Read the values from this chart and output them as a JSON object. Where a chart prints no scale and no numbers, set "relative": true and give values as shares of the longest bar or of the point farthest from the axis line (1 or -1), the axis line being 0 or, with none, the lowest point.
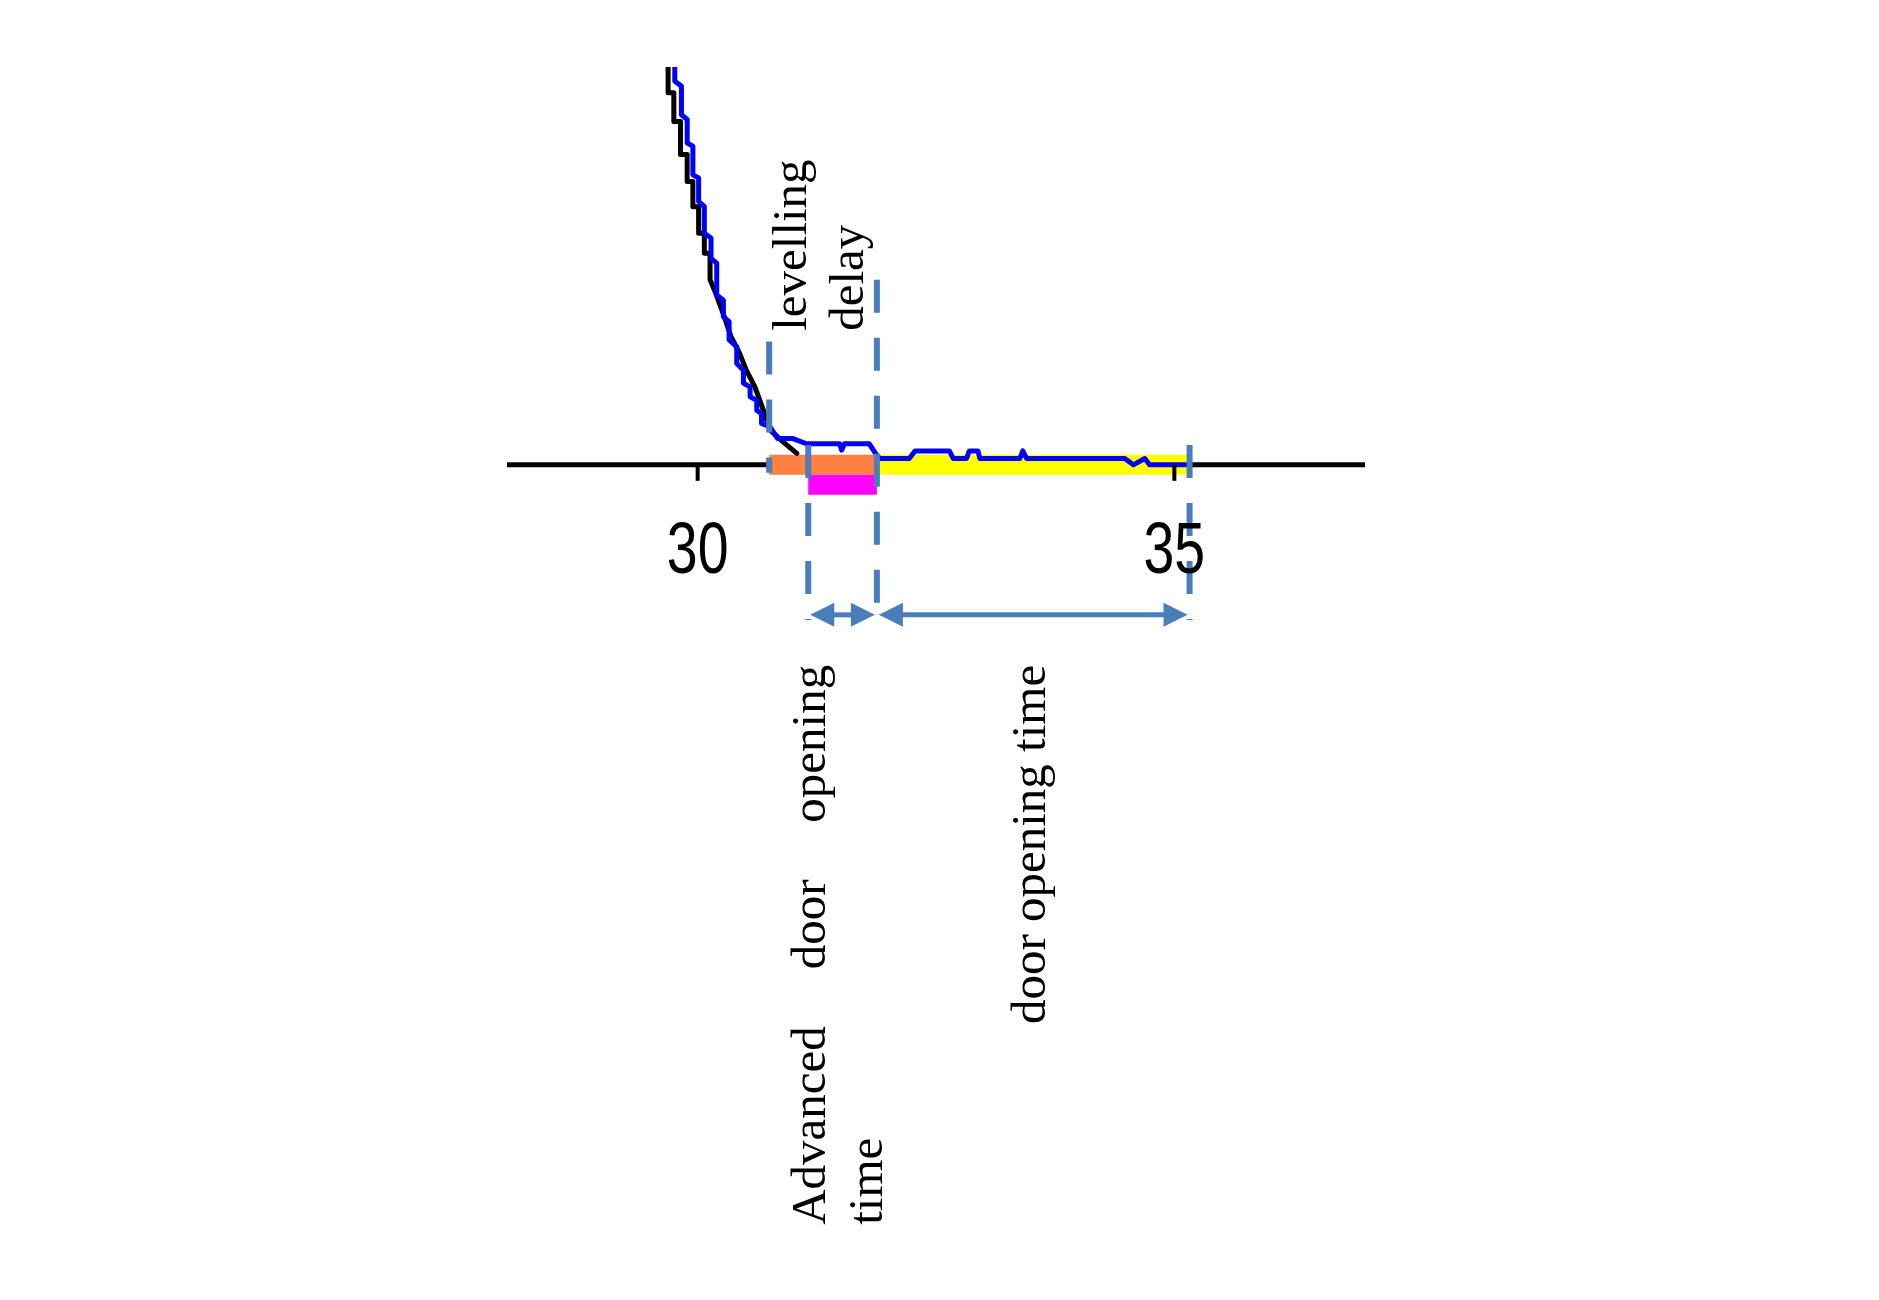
{
  "chart_data": {
    "type": "line",
    "relative": true,
    "xlim": [
      28,
      37
    ],
    "xticks": [
      30,
      35
    ],
    "tick_labels": "x",
    "series": [
      {
        "color": "#ff8040",
        "x": [
          30.75,
          31.88
        ],
        "values": [
          0,
          0
        ]
      },
      {
        "color": "#ff00ff",
        "x": [
          31.16,
          31.88
        ],
        "values": [
          -0.05,
          -0.05
        ]
      },
      {
        "color": "#ffff00",
        "x": [
          31.88,
          35.16
        ],
        "values": [
          0,
          0
        ]
      },
      {
        "color": "#000000",
        "x": [
          29.69,
          29.69,
          29.75,
          29.75,
          29.82,
          29.82,
          29.89,
          29.89,
          29.95,
          29.95,
          30.01,
          30.01,
          30.07,
          30.07,
          30.13,
          30.13,
          30.19,
          30.28,
          30.35,
          30.44,
          30.51,
          30.6,
          30.69,
          30.76,
          30.89,
          31.04
        ],
        "values": [
          1,
          0.935,
          0.935,
          0.863,
          0.863,
          0.78,
          0.78,
          0.712,
          0.712,
          0.649,
          0.649,
          0.582,
          0.582,
          0.532,
          0.532,
          0.465,
          0.431,
          0.372,
          0.322,
          0.28,
          0.238,
          0.196,
          0.137,
          0.087,
          0.059,
          0.029
        ]
      },
      {
        "color": "#0000ff",
        "x": [
          29.76,
          29.76,
          29.83,
          29.83,
          29.89,
          29.89,
          29.95,
          29.95,
          30.01,
          30.01,
          30.07,
          30.07,
          30.14,
          30.14,
          30.2,
          30.2,
          30.27,
          30.27,
          30.33,
          30.33,
          30.41,
          30.41,
          30.48,
          30.48,
          30.55,
          30.55,
          30.62,
          30.62,
          30.67,
          30.67,
          30.76,
          30.84,
          31.0,
          31.14,
          31.49,
          31.51,
          31.54,
          31.8,
          31.88,
          31.91,
          32.22,
          32.28,
          32.64,
          32.68,
          32.82,
          32.85,
          32.94,
          32.96,
          33.38,
          33.41,
          33.45,
          34.48,
          34.57,
          34.69,
          34.74,
          35.13
        ],
        "values": [
          1,
          0.964,
          0.952,
          0.88,
          0.868,
          0.809,
          0.801,
          0.729,
          0.721,
          0.662,
          0.649,
          0.582,
          0.57,
          0.519,
          0.507,
          0.427,
          0.414,
          0.372,
          0.36,
          0.314,
          0.297,
          0.255,
          0.238,
          0.205,
          0.196,
          0.171,
          0.162,
          0.137,
          0.129,
          0.104,
          0.095,
          0.066,
          0.066,
          0.053,
          0.053,
          0.037,
          0.053,
          0.053,
          0.024,
          0.016,
          0.016,
          0.035,
          0.035,
          0.016,
          0.016,
          0.035,
          0.035,
          0.016,
          0.016,
          0.035,
          0.016,
          0.016,
          0,
          0.016,
          0,
          0
        ]
      }
    ],
    "ref_lines": [
      {
        "axis": "x",
        "value": 30.75,
        "color": "#4a7ebb",
        "line_style": "dashed"
      },
      {
        "axis": "x",
        "value": 31.16,
        "color": "#4a7ebb",
        "line_style": "dashed"
      },
      {
        "axis": "x",
        "value": 31.88,
        "color": "#4a7ebb",
        "line_style": "dashed"
      },
      {
        "axis": "x",
        "value": 35.16,
        "color": "#4a7ebb",
        "line_style": "dashed"
      }
    ],
    "annotations": [
      "levelling delay",
      "Advanced door opening time",
      "door opening time"
    ]
  }
}
